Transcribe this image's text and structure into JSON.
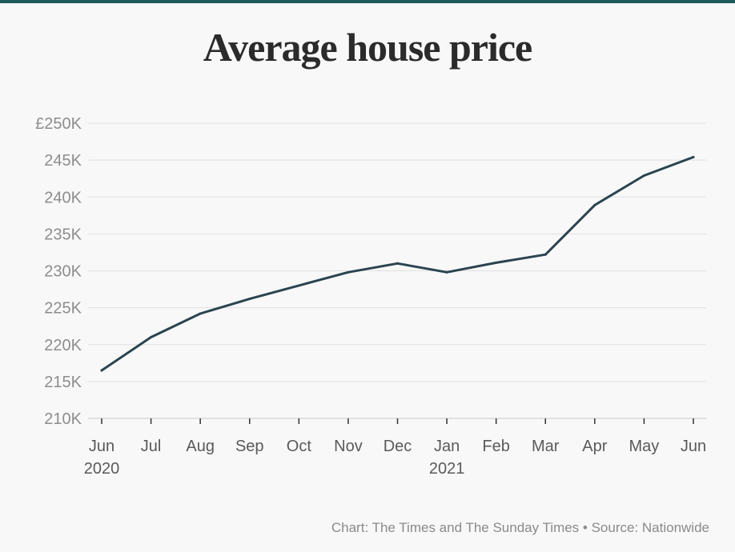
{
  "title": "Average house price",
  "footer": "Chart: The Times and The Sunday Times • Source: Nationwide",
  "colors": {
    "line": "#2a4450",
    "grid": "#e0e0e0",
    "background": "#f8f8f8",
    "accent_rule": "#1f5a5a"
  },
  "chart_data": {
    "type": "line",
    "title": "Average house price",
    "xlabel": "",
    "ylabel": "",
    "categories": [
      "Jun",
      "Jul",
      "Aug",
      "Sep",
      "Oct",
      "Nov",
      "Dec",
      "Jan",
      "Feb",
      "Mar",
      "Apr",
      "May",
      "Jun"
    ],
    "year_labels": [
      {
        "index": 0,
        "label": "2020"
      },
      {
        "index": 7,
        "label": "2021"
      }
    ],
    "series": [
      {
        "values": [
          216500,
          221000,
          224200,
          226200,
          228000,
          229800,
          231000,
          229800,
          231100,
          232200,
          238900,
          242900,
          245400
        ]
      }
    ],
    "ylim": [
      210000,
      250000
    ],
    "yticks": [
      210000,
      215000,
      220000,
      225000,
      230000,
      235000,
      240000,
      245000,
      250000
    ],
    "ytick_labels": [
      "210K",
      "215K",
      "220K",
      "225K",
      "230K",
      "235K",
      "240K",
      "245K",
      "£250K"
    ],
    "grid": true,
    "legend": "none"
  }
}
